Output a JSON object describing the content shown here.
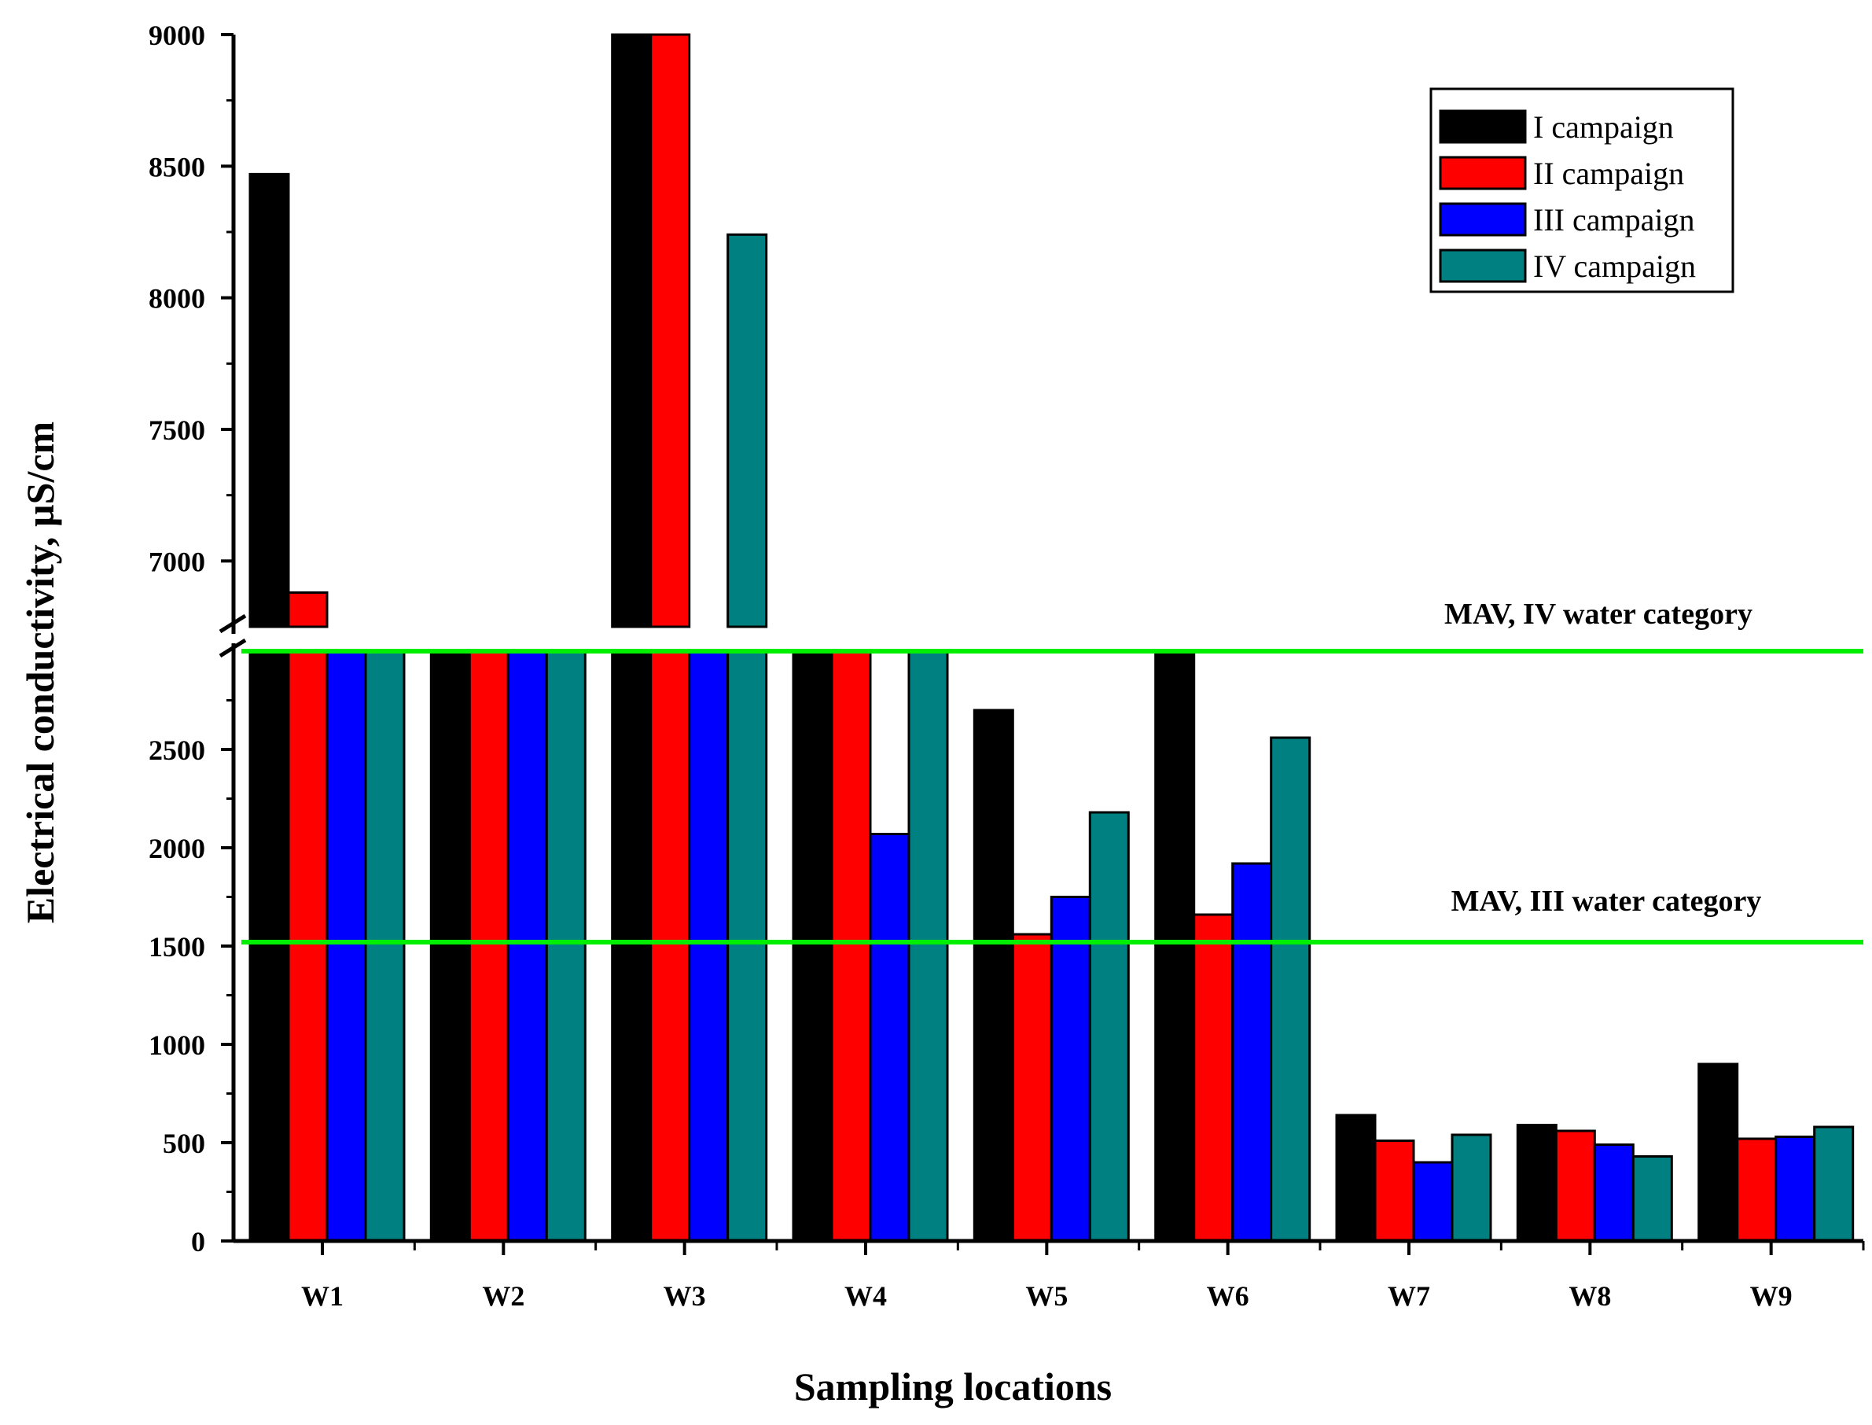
{
  "chart_data": {
    "type": "bar",
    "title": "",
    "xlabel": "Sampling locations",
    "ylabel": "Electrical conductivity, µS/cm",
    "categories": [
      "W1",
      "W2",
      "W3",
      "W4",
      "W5",
      "W6",
      "W7",
      "W8",
      "W9"
    ],
    "series": [
      {
        "name": "I campaign",
        "color": "#000000",
        "values": [
          8470,
          3000,
          9000,
          3000,
          2700,
          3000,
          640,
          590,
          900
        ]
      },
      {
        "name": "II campaign",
        "color": "#ff0000",
        "values": [
          6880,
          3000,
          9000,
          3000,
          1560,
          1660,
          510,
          560,
          520
        ]
      },
      {
        "name": "III campaign",
        "color": "#0000ff",
        "values": [
          3000,
          3000,
          3000,
          2070,
          1750,
          1920,
          400,
          490,
          530
        ]
      },
      {
        "name": "IV campaign",
        "color": "#008080",
        "values": [
          3000,
          3000,
          8240,
          3000,
          2180,
          2560,
          540,
          430,
          580
        ]
      }
    ],
    "axis_break": {
      "lower_range": [
        0,
        3000
      ],
      "upper_range": [
        6750,
        9000
      ]
    },
    "yticks_lower": [
      "0",
      "500",
      "1000",
      "1500",
      "2000",
      "2500"
    ],
    "yticks_upper": [
      "7000",
      "7500",
      "8000",
      "8500",
      "9000"
    ],
    "reference_lines": [
      {
        "label": "MAV, IV water category",
        "value": 3000,
        "color": "#00ee00"
      },
      {
        "label": "MAV, III water category",
        "value": 1520,
        "color": "#00ee00"
      }
    ],
    "legend_position": "top-right"
  }
}
